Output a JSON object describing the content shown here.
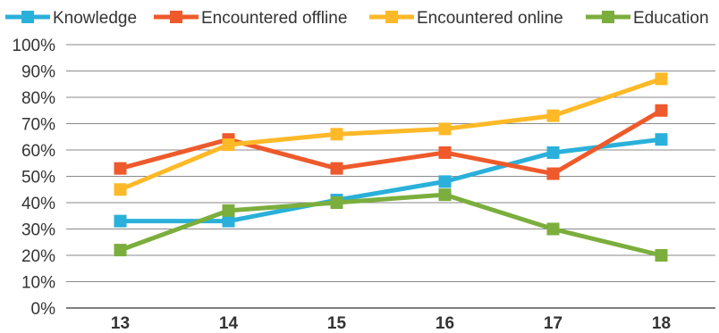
{
  "chart_data": {
    "type": "line",
    "x": [
      "13",
      "14",
      "15",
      "16",
      "17",
      "18"
    ],
    "ylim": [
      0,
      100
    ],
    "y_ticks": [
      "0%",
      "10%",
      "20%",
      "30%",
      "40%",
      "50%",
      "60%",
      "70%",
      "80%",
      "90%",
      "100%"
    ],
    "grid": true,
    "legend_position": "top",
    "series": [
      {
        "name": "Knowledge",
        "color": "#2AB0DA",
        "values": [
          33,
          33,
          41,
          48,
          59,
          64
        ]
      },
      {
        "name": "Encountered offline",
        "color": "#EE5A2B",
        "values": [
          53,
          64,
          53,
          59,
          51,
          75
        ]
      },
      {
        "name": "Encountered online",
        "color": "#FDB927",
        "values": [
          45,
          62,
          66,
          68,
          73,
          87
        ]
      },
      {
        "name": "Education",
        "color": "#7BAE3D",
        "values": [
          22,
          37,
          40,
          43,
          30,
          20
        ]
      }
    ]
  }
}
